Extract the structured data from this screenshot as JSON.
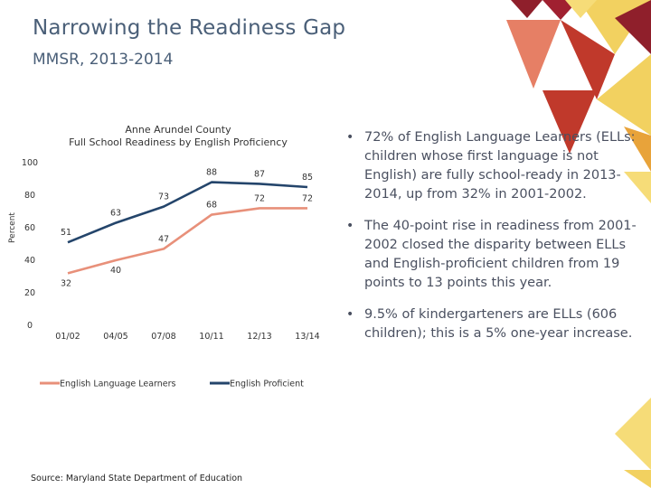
{
  "slide": {
    "title": "Narrowing the Readiness Gap",
    "subtitle": "MMSR, 2013-2014",
    "source": "Source: Maryland State Department of Education",
    "bullets": [
      "72% of English Language Learners (ELLs: children whose first language is not English) are fully school-ready in 2013-2014, up from 32% in 2001-2002.",
      "The 40-point rise in readiness from 2001-2002 closed the disparity between ELLs and English-proficient children from 19 points to 13 points this year.",
      "9.5% of kindergarteners are ELLs (606 children); this is a 5% one-year increase."
    ],
    "bullet_glyph": "•"
  },
  "colors": {
    "ell": "#e8907a",
    "proficient": "#24456b",
    "text": "#4a5f78",
    "deco": [
      "#8f1f2b",
      "#c0392b",
      "#e67f65",
      "#f2d160",
      "#e8a33a",
      "#f6dc78",
      "#a02030"
    ]
  },
  "chart_data": {
    "type": "line",
    "title": "Anne Arundel County",
    "subtitle": "Full School Readiness by English Proficiency",
    "ylabel": "Percent",
    "xlabel": "",
    "ylim": [
      0,
      100
    ],
    "yticks": [
      0,
      20,
      40,
      60,
      80,
      100
    ],
    "categories": [
      "01/02",
      "04/05",
      "07/08",
      "10/11",
      "12/13",
      "13/14"
    ],
    "series": [
      {
        "name": "English Language Learners",
        "key": "ell",
        "values": [
          32,
          40,
          47,
          68,
          72,
          72
        ]
      },
      {
        "name": "English Proficient",
        "key": "proficient",
        "values": [
          51,
          63,
          73,
          88,
          87,
          85
        ]
      }
    ],
    "legend": "bottom"
  }
}
